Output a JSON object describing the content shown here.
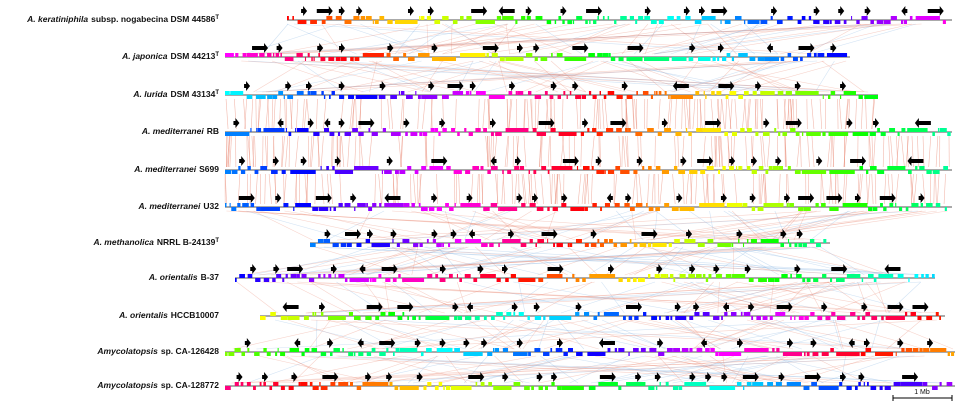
{
  "genomes": [
    {
      "species": "A. keratiniphila",
      "strain": "subsp. nogabecina DSM 44586",
      "sup": "T"
    },
    {
      "species": "A. japonica",
      "strain": "DSM 44213",
      "sup": "T"
    },
    {
      "species": "A. lurida",
      "strain": "DSM 43134",
      "sup": "T"
    },
    {
      "species": "A. mediterranei",
      "strain": "RB"
    },
    {
      "species": "A. mediterranei",
      "strain": "S699"
    },
    {
      "species": "A. mediterranei",
      "strain": "U32"
    },
    {
      "species": "A. methanolica",
      "strain": "NRRL B-24139",
      "sup": "T"
    },
    {
      "species": "A. orientalis",
      "strain": "B-37"
    },
    {
      "species": "A. orientalis",
      "strain": "HCCB10007"
    },
    {
      "species": "Amycolatopsis",
      "strain": "sp. CA-126428"
    },
    {
      "species": "Amycolatopsis",
      "strain": "sp. CA-128772"
    }
  ],
  "scale_bar": {
    "label": "1 Mb"
  }
}
